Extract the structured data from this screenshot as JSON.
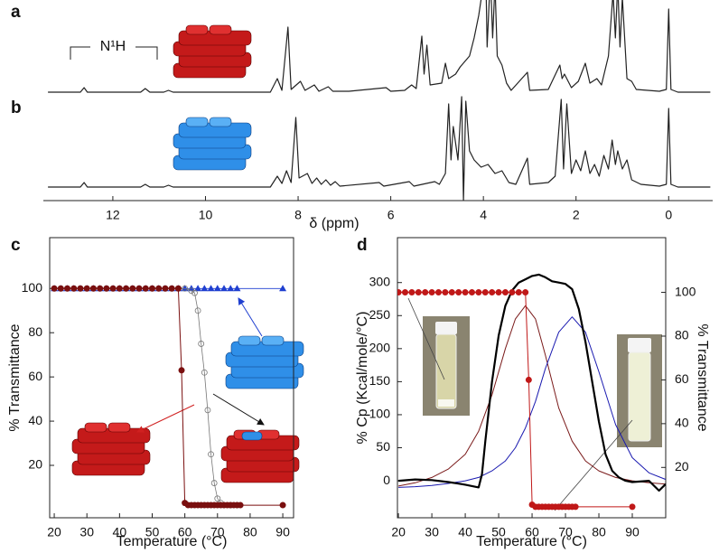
{
  "chart_data": [
    {
      "type": "line",
      "label": "a",
      "annotation": "N¹H",
      "xlim": [
        13.5,
        -0.95
      ],
      "ylim": [
        0,
        100
      ],
      "x": [
        13.4,
        12.7,
        12.62,
        12.55,
        11.4,
        11.3,
        11.2,
        10.9,
        10.8,
        10.7,
        8.6,
        8.45,
        8.35,
        8.22,
        8.15,
        7.95,
        7.85,
        7.65,
        7.55,
        7.35,
        7.25,
        6.9,
        6.1,
        6.0,
        5.7,
        5.55,
        5.45,
        5.33,
        5.28,
        5.22,
        5.15,
        4.9,
        4.82,
        4.75,
        4.6,
        4.5,
        4.3,
        4.2,
        4.1,
        4.0,
        3.95,
        3.92,
        3.85,
        3.8,
        3.75,
        3.7,
        3.6,
        3.5,
        3.4,
        3.05,
        3.0,
        2.6,
        2.35,
        2.3,
        2.25,
        2.1,
        1.95,
        1.8,
        1.7,
        1.55,
        1.45,
        1.3,
        1.2,
        1.15,
        1.1,
        1.05,
        1.0,
        0.9,
        0.8,
        0.7,
        0.2,
        0.05,
        0,
        -0.05,
        -0.2,
        -0.9
      ],
      "series": [
        {
          "color": "#222222",
          "width": 1.2,
          "values": [
            0,
            0,
            5,
            0,
            0,
            4,
            0,
            0,
            2,
            0,
            0,
            15,
            2,
            72,
            3,
            12,
            2,
            8,
            1,
            6,
            1,
            1,
            5,
            1,
            2,
            8,
            4,
            62,
            20,
            52,
            8,
            10,
            32,
            15,
            20,
            28,
            40,
            60,
            85,
            120,
            140,
            50,
            130,
            60,
            120,
            40,
            30,
            10,
            2,
            22,
            2,
            3,
            30,
            15,
            20,
            5,
            12,
            32,
            10,
            15,
            8,
            40,
            110,
            60,
            120,
            50,
            105,
            15,
            12,
            3,
            1,
            3,
            92,
            3,
            0,
            0
          ]
        }
      ]
    },
    {
      "type": "line",
      "label": "b",
      "xlabel": "δ (ppm)",
      "xlim": [
        13.5,
        -0.95
      ],
      "ylim": [
        0,
        100
      ],
      "xticks": [
        12,
        10,
        8,
        6,
        4,
        2,
        0
      ],
      "x": [
        13.4,
        12.7,
        12.62,
        12.55,
        11.4,
        11.3,
        11.2,
        10.9,
        10.8,
        10.7,
        8.6,
        8.45,
        8.35,
        8.25,
        8.15,
        8.05,
        7.98,
        7.8,
        7.7,
        7.6,
        7.5,
        7.4,
        7.3,
        7.2,
        7.1,
        6.25,
        6.15,
        5.6,
        5.5,
        5.05,
        4.95,
        4.82,
        4.75,
        4.7,
        4.65,
        4.55,
        4.47,
        4.43,
        4.38,
        4.3,
        4.2,
        4.05,
        3.9,
        3.75,
        3.6,
        3.45,
        3.3,
        3.05,
        3.0,
        2.6,
        2.45,
        2.32,
        2.27,
        2.2,
        2.1,
        2.0,
        1.9,
        1.8,
        1.7,
        1.6,
        1.5,
        1.4,
        1.3,
        1.22,
        1.15,
        1.1,
        1.0,
        0.9,
        0.8,
        0.6,
        0.2,
        0.05,
        0,
        -0.05,
        -0.2,
        -0.9
      ],
      "series": [
        {
          "color": "#222222",
          "width": 1.2,
          "values": [
            0,
            0,
            5,
            0,
            0,
            3,
            0,
            0,
            2,
            0,
            0,
            12,
            4,
            18,
            5,
            77,
            10,
            15,
            4,
            10,
            3,
            8,
            2,
            6,
            1,
            5,
            1,
            6,
            1,
            6,
            3,
            15,
            92,
            30,
            67,
            30,
            100,
            -15,
            95,
            40,
            30,
            22,
            25,
            15,
            18,
            5,
            3,
            32,
            3,
            5,
            12,
            97,
            20,
            92,
            15,
            30,
            18,
            40,
            15,
            25,
            12,
            35,
            20,
            52,
            25,
            40,
            20,
            30,
            8,
            3,
            1,
            3,
            87,
            3,
            0,
            0
          ]
        }
      ]
    },
    {
      "type": "line",
      "label": "c",
      "xlabel": "Temperature (°C)",
      "ylabel": "% Transmittance",
      "xlim": [
        18.6,
        93.3
      ],
      "ylim": [
        -3.7,
        123
      ],
      "xticks": [
        20,
        30,
        40,
        50,
        60,
        70,
        80,
        90
      ],
      "yticks": [
        20,
        40,
        60,
        80,
        100
      ],
      "series": [
        {
          "color": "#1f3fd0",
          "marker": "triangle",
          "width": 0.8,
          "x": [
            20,
            22,
            24,
            26,
            28,
            30,
            32,
            34,
            36,
            38,
            40,
            42,
            44,
            46,
            48,
            50,
            52,
            54,
            56,
            58,
            60,
            62,
            64,
            66,
            68,
            70,
            72,
            74,
            76,
            90
          ],
          "values": [
            100,
            100,
            100,
            100,
            100,
            100,
            100,
            100,
            100,
            100,
            100,
            100,
            100,
            100,
            100,
            100,
            100,
            100,
            100,
            100,
            100,
            100,
            100,
            100,
            100,
            100,
            100,
            100,
            100,
            100
          ]
        },
        {
          "color": "#777777",
          "marker": "open-circle",
          "width": 0.8,
          "x": [
            20,
            22,
            24,
            26,
            28,
            30,
            32,
            34,
            36,
            38,
            40,
            42,
            44,
            46,
            48,
            50,
            52,
            54,
            56,
            58,
            60,
            62,
            63,
            64,
            65,
            66,
            67,
            68,
            69,
            70,
            71,
            72,
            74,
            76
          ],
          "values": [
            100,
            100,
            100,
            100,
            100,
            100,
            100,
            100,
            100,
            100,
            100,
            100,
            100,
            100,
            100,
            100,
            100,
            100,
            100,
            100,
            100,
            99,
            98,
            90,
            75,
            62,
            45,
            25,
            12,
            5,
            3,
            2,
            2,
            2
          ]
        },
        {
          "color": "#7a0f0f",
          "marker": "circle",
          "width": 1,
          "x": [
            20,
            22,
            24,
            26,
            28,
            30,
            32,
            34,
            36,
            38,
            40,
            42,
            44,
            46,
            48,
            50,
            52,
            54,
            56,
            58,
            59,
            60,
            61,
            62,
            63,
            64,
            65,
            66,
            67,
            68,
            69,
            70,
            71,
            72,
            73,
            74,
            75,
            76,
            77,
            90
          ],
          "values": [
            100,
            100,
            100,
            100,
            100,
            100,
            100,
            100,
            100,
            100,
            100,
            100,
            100,
            100,
            100,
            100,
            100,
            100,
            100,
            100,
            63,
            3,
            2,
            2,
            2,
            2,
            2,
            2,
            2,
            2,
            2,
            2,
            2,
            2,
            2,
            2,
            2,
            2,
            2,
            2
          ]
        }
      ]
    },
    {
      "type": "line",
      "label": "d",
      "xlabel": "Temperature (°C)",
      "ylabel": "% Cp (Kcal/mole/°C)",
      "y2label": "% Transmittance",
      "xlim": [
        19.7,
        100
      ],
      "ylim": [
        -56,
        368
      ],
      "y2lim": [
        -3,
        125
      ],
      "xticks": [
        20,
        30,
        40,
        50,
        60,
        70,
        80,
        90
      ],
      "yticks": [
        0,
        50,
        100,
        150,
        200,
        250,
        300
      ],
      "y2ticks": [
        20,
        40,
        60,
        80,
        100
      ],
      "series": [
        {
          "color": "#7a1a1a",
          "width": 1,
          "x": [
            20,
            25,
            30,
            35,
            40,
            44,
            48,
            52,
            55,
            58,
            61,
            64,
            68,
            72,
            76,
            80,
            85,
            90,
            95,
            100
          ],
          "values": [
            -8,
            -3,
            5,
            18,
            40,
            75,
            130,
            200,
            245,
            265,
            245,
            190,
            110,
            60,
            30,
            15,
            5,
            0,
            -3,
            -5
          ]
        },
        {
          "color": "#1a1ab0",
          "width": 1,
          "x": [
            20,
            25,
            30,
            35,
            40,
            44,
            48,
            52,
            55,
            58,
            61,
            64,
            68,
            72,
            76,
            80,
            85,
            90,
            95,
            100
          ],
          "values": [
            -10,
            -9,
            -7,
            -4,
            0,
            5,
            15,
            30,
            50,
            80,
            120,
            170,
            225,
            248,
            225,
            165,
            85,
            35,
            12,
            2
          ]
        },
        {
          "color": "#000000",
          "width": 2.2,
          "x": [
            20,
            25,
            30,
            35,
            40,
            44,
            45,
            46,
            48,
            50,
            52,
            54,
            56,
            58,
            60,
            62,
            64,
            66,
            68,
            70,
            72,
            74,
            76,
            78,
            80,
            82,
            84,
            86,
            88,
            90,
            95,
            98,
            100
          ],
          "values": [
            0,
            2,
            1,
            -2,
            -6,
            -10,
            10,
            60,
            150,
            220,
            265,
            288,
            300,
            305,
            310,
            312,
            308,
            302,
            300,
            298,
            290,
            260,
            210,
            150,
            90,
            40,
            15,
            5,
            0,
            -2,
            0,
            -15,
            -5
          ]
        },
        {
          "color": "#c01818",
          "marker": "circle",
          "width": 1,
          "axis": "y2",
          "x": [
            20,
            22,
            24,
            26,
            28,
            30,
            32,
            34,
            36,
            38,
            40,
            42,
            44,
            46,
            48,
            50,
            52,
            54,
            56,
            58,
            59,
            60,
            61,
            62,
            63,
            64,
            65,
            66,
            67,
            68,
            69,
            70,
            71,
            72,
            73,
            90
          ],
          "values": [
            100,
            100,
            100,
            100,
            100,
            100,
            100,
            100,
            100,
            100,
            100,
            100,
            100,
            100,
            100,
            100,
            100,
            100,
            100,
            100,
            60,
            3,
            2,
            2,
            2,
            2,
            2,
            2,
            2,
            2,
            2,
            2,
            2,
            2,
            2,
            2
          ]
        }
      ]
    }
  ]
}
